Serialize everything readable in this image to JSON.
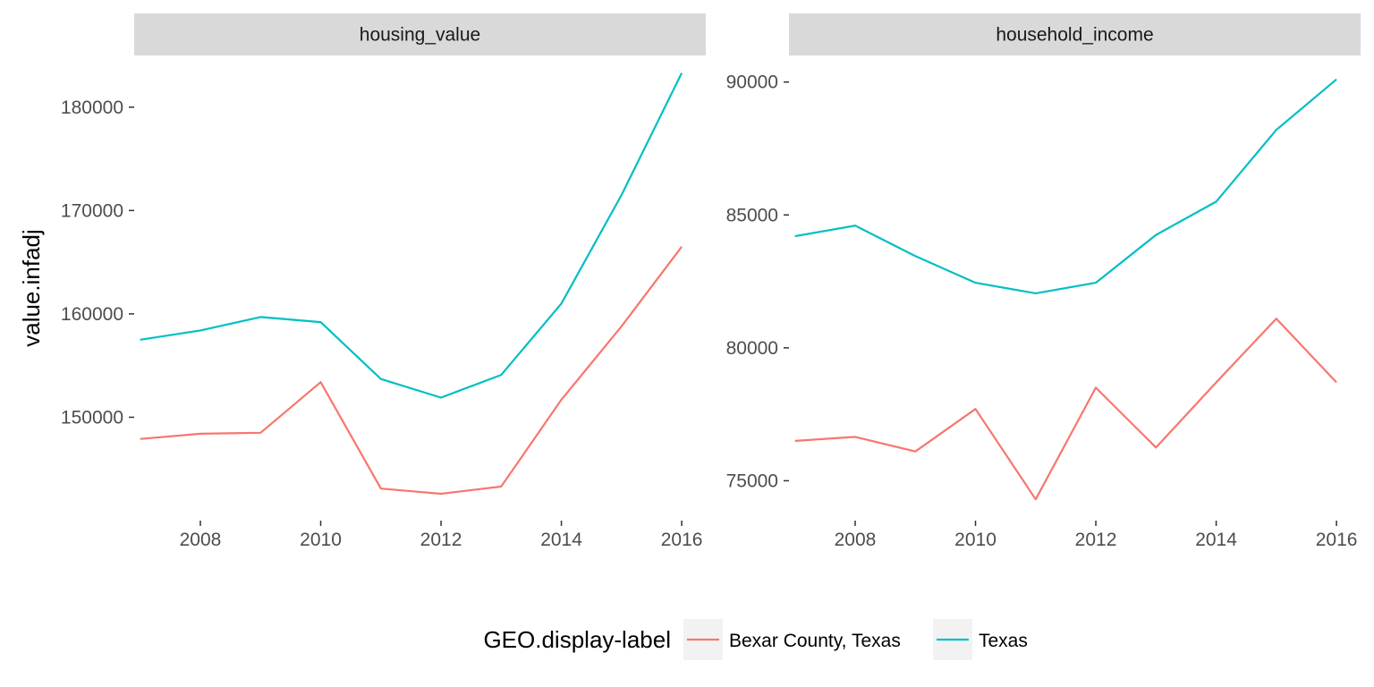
{
  "chart_data": {
    "type": "line",
    "ylabel": "value.infadj",
    "legend": {
      "title": "GEO.display-label",
      "position": "bottom",
      "entries": [
        "Bexar County, Texas",
        "Texas"
      ]
    },
    "colors": {
      "Bexar County, Texas": "#F8766D",
      "Texas": "#00BFC4",
      "strip": "#D9D9D9",
      "legend_key": "#F2F2F2"
    },
    "grid": false,
    "facets": [
      {
        "title": "housing_value",
        "x": [
          2007,
          2008,
          2009,
          2010,
          2011,
          2012,
          2013,
          2014,
          2015,
          2016
        ],
        "xlim": [
          2006.9,
          2016.4
        ],
        "xticks": [
          2008,
          2010,
          2012,
          2014,
          2016
        ],
        "ylim": [
          140000,
          185000
        ],
        "yticks": [
          150000,
          160000,
          170000,
          180000
        ],
        "series": [
          {
            "name": "Bexar County, Texas",
            "values": [
              147900,
              148400,
              148500,
              153400,
              143100,
              142600,
              143300,
              151700,
              158800,
              166500
            ]
          },
          {
            "name": "Texas",
            "values": [
              157500,
              158400,
              159700,
              159200,
              153700,
              151900,
              154100,
              161000,
              171500,
              183300
            ]
          }
        ]
      },
      {
        "title": "household_income",
        "x": [
          2007,
          2008,
          2009,
          2010,
          2011,
          2012,
          2013,
          2014,
          2015,
          2016
        ],
        "xlim": [
          2006.9,
          2016.4
        ],
        "xticks": [
          2008,
          2010,
          2012,
          2014,
          2016
        ],
        "ylim": [
          73500,
          91000
        ],
        "yticks": [
          75000,
          80000,
          85000,
          90000
        ],
        "series": [
          {
            "name": "Bexar County, Texas",
            "values": [
              76500,
              76650,
              76100,
              77700,
              74300,
              78500,
              76250,
              78700,
              81100,
              78700
            ]
          },
          {
            "name": "Texas",
            "values": [
              84200,
              84600,
              83450,
              82450,
              82050,
              82450,
              84250,
              85500,
              88200,
              90100
            ]
          }
        ]
      }
    ]
  }
}
